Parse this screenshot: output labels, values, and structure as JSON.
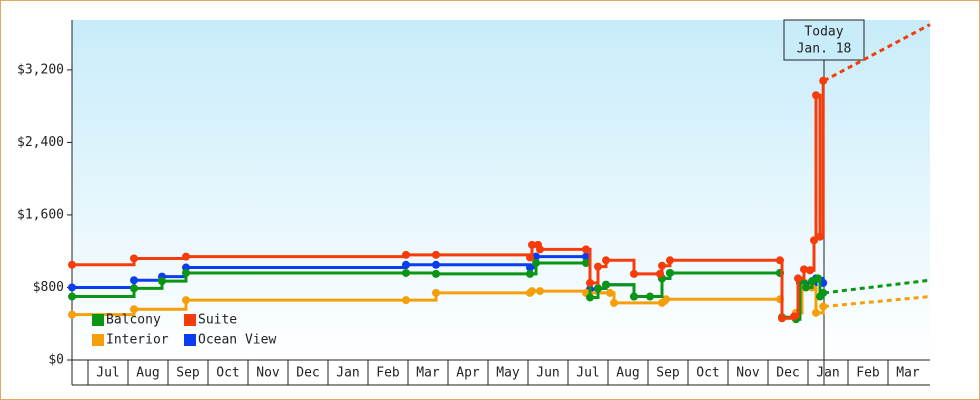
{
  "chart_data": {
    "type": "step-line",
    "xlim": [
      -0.4,
      21.05
    ],
    "ylim": [
      0,
      3750
    ],
    "yticks": [
      {
        "value": 0,
        "label": "$0"
      },
      {
        "value": 800,
        "label": "$800"
      },
      {
        "value": 1600,
        "label": "$1,600"
      },
      {
        "value": 2400,
        "label": "$2,400"
      },
      {
        "value": 3200,
        "label": "$3,200"
      }
    ],
    "xticks": [
      {
        "value": 0.5,
        "label": "Jul"
      },
      {
        "value": 1.5,
        "label": "Aug"
      },
      {
        "value": 2.5,
        "label": "Sep"
      },
      {
        "value": 3.5,
        "label": "Oct"
      },
      {
        "value": 4.5,
        "label": "Nov"
      },
      {
        "value": 5.5,
        "label": "Dec"
      },
      {
        "value": 6.5,
        "label": "Jan"
      },
      {
        "value": 7.5,
        "label": "Feb"
      },
      {
        "value": 8.5,
        "label": "Mar"
      },
      {
        "value": 9.5,
        "label": "Apr"
      },
      {
        "value": 10.5,
        "label": "May"
      },
      {
        "value": 11.5,
        "label": "Jun"
      },
      {
        "value": 12.5,
        "label": "Jul"
      },
      {
        "value": 13.5,
        "label": "Aug"
      },
      {
        "value": 14.5,
        "label": "Sep"
      },
      {
        "value": 15.5,
        "label": "Oct"
      },
      {
        "value": 16.5,
        "label": "Nov"
      },
      {
        "value": 17.5,
        "label": "Dec"
      },
      {
        "value": 18.5,
        "label": "Jan"
      },
      {
        "value": 19.5,
        "label": "Feb"
      },
      {
        "value": 20.5,
        "label": "Mar"
      }
    ],
    "annotation": {
      "x": 18.4,
      "lines": [
        "Today",
        "Jan. 18"
      ]
    },
    "forecast_x": [
      18.4,
      21.05
    ],
    "series": [
      {
        "name": "Ocean View",
        "color": "#0a3cf0",
        "x": [
          -0.4,
          1.15,
          1.85,
          2.45,
          7.95,
          8.7,
          11.05,
          11.2,
          12.45,
          12.55,
          12.75,
          12.95,
          13.65,
          14.35,
          14.55,
          17.3,
          17.35,
          17.7,
          17.8,
          18.0,
          18.2,
          18.38
        ],
        "values": [
          800,
          880,
          920,
          1020,
          1050,
          1050,
          1020,
          1140,
          1140,
          780,
          790,
          830,
          700,
          900,
          960,
          960,
          470,
          470,
          850,
          820,
          900,
          850
        ]
      },
      {
        "name": "Interior",
        "color": "#f5a00a",
        "x": [
          -0.4,
          1.15,
          2.45,
          7.95,
          8.7,
          11.05,
          11.1,
          11.3,
          12.45,
          13.05,
          13.15,
          14.35,
          14.45,
          17.3,
          17.35,
          17.7,
          17.85,
          18.1,
          18.2,
          18.38
        ],
        "values": [
          500,
          560,
          660,
          660,
          740,
          740,
          760,
          760,
          740,
          740,
          630,
          630,
          670,
          670,
          470,
          520,
          800,
          800,
          520,
          590
        ],
        "forecast": [
          590,
          700
        ]
      },
      {
        "name": "Balcony",
        "color": "#0a9614",
        "x": [
          -0.4,
          1.15,
          1.85,
          2.45,
          7.95,
          8.7,
          11.05,
          11.2,
          12.45,
          12.55,
          12.75,
          12.95,
          13.65,
          14.05,
          14.35,
          14.55,
          17.3,
          17.35,
          17.7,
          17.8,
          17.95,
          18.1,
          18.25,
          18.3,
          18.38
        ],
        "values": [
          700,
          790,
          870,
          960,
          960,
          950,
          950,
          1070,
          1070,
          690,
          790,
          830,
          700,
          700,
          900,
          960,
          960,
          470,
          450,
          870,
          800,
          870,
          900,
          700,
          740
        ],
        "forecast": [
          740,
          880
        ]
      },
      {
        "name": "Suite",
        "color": "#f53c0a",
        "x": [
          -0.4,
          1.15,
          2.45,
          7.95,
          8.7,
          11.05,
          11.1,
          11.25,
          11.3,
          12.45,
          12.55,
          12.75,
          12.95,
          13.65,
          14.3,
          14.35,
          14.55,
          17.3,
          17.35,
          17.65,
          17.75,
          17.9,
          18.05,
          18.15,
          18.2,
          18.3,
          18.38
        ],
        "values": [
          1050,
          1120,
          1140,
          1160,
          1160,
          1130,
          1270,
          1270,
          1220,
          1220,
          850,
          1030,
          1100,
          950,
          950,
          1040,
          1100,
          1100,
          460,
          480,
          900,
          1000,
          990,
          1320,
          2920,
          1360,
          3080
        ],
        "forecast": [
          3080,
          3700
        ]
      }
    ],
    "legend": [
      2,
      3,
      1,
      0
    ]
  }
}
